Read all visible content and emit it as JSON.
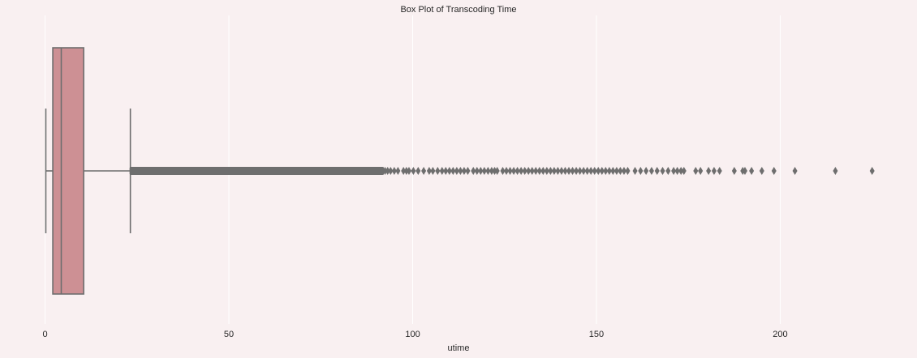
{
  "colors": {
    "background": "#f9f0f1",
    "plot_background": "#f9f0f1",
    "grid": "#ffffff",
    "box_fill": "#cd9094",
    "line": "#6e6e6e",
    "outlier": "#6e6e6e"
  },
  "chart_data": {
    "type": "box",
    "orientation": "horizontal",
    "title": "Box Plot of Transcoding Time",
    "xlabel": "utime",
    "ylabel": "",
    "xlim": [
      -10.5,
      235
    ],
    "xticks": [
      0,
      50,
      100,
      150,
      200
    ],
    "xtick_labels": [
      "0",
      "50",
      "100",
      "150",
      "200"
    ],
    "grid": true,
    "box": {
      "whisker_low": 0.2,
      "q1": 2.1,
      "median": 4.4,
      "q3": 10.5,
      "whisker_high": 23.2
    },
    "outlier_dense_range": [
      23.2,
      92
    ],
    "outliers": [
      92.5,
      93.2,
      94,
      95,
      96,
      97.5,
      98.3,
      99,
      100.2,
      101.5,
      103,
      104.5,
      105.5,
      106.8,
      108,
      109,
      110,
      111,
      112,
      113,
      114,
      115,
      116.5,
      117.5,
      118.5,
      119.5,
      120.5,
      121.5,
      122.3,
      123,
      124.5,
      125.5,
      126.5,
      127.5,
      128.5,
      129.5,
      130.5,
      131.5,
      132.5,
      133.5,
      134.5,
      135.5,
      136.5,
      137.5,
      138.5,
      139.5,
      140.5,
      141.5,
      142.5,
      143.5,
      144.5,
      145.5,
      146.5,
      147.5,
      148.5,
      149.5,
      150.5,
      151.5,
      152.5,
      153.5,
      154.5,
      155.5,
      156.5,
      157.5,
      158.5,
      160.5,
      162,
      163.5,
      165,
      166.5,
      168,
      169.5,
      171,
      172,
      173,
      173.8,
      177,
      178.3,
      180.5,
      182,
      183.5,
      187.5,
      189.8,
      190.4,
      192.2,
      195,
      198.3,
      204,
      215,
      225
    ]
  }
}
